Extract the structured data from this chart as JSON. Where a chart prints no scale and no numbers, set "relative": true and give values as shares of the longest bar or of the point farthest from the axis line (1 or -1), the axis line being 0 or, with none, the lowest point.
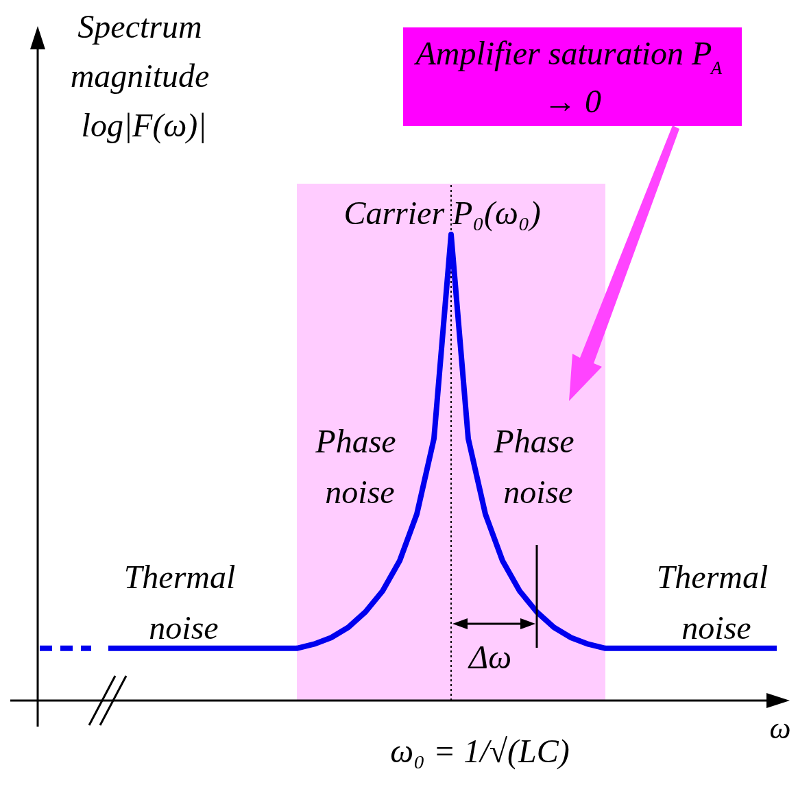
{
  "chart_data": {
    "type": "line",
    "relative": true,
    "marker": "none",
    "xlabel": "ω",
    "ylabel": "Spectrum magnitude log|F(ω)|",
    "categories": [
      null,
      null,
      null,
      null,
      null,
      null,
      null,
      null,
      null,
      null,
      null,
      null,
      null,
      null,
      null,
      null,
      null,
      null,
      null,
      null,
      null,
      null,
      null,
      null,
      null,
      null,
      null,
      null,
      null,
      null,
      null,
      null,
      null,
      null,
      null,
      null,
      null,
      null,
      null,
      null,
      null,
      null,
      null,
      null
    ],
    "series": [
      {
        "color": "#0000ee",
        "line_style": "dashed",
        "values": [
          0.112,
          0.112,
          0.112,
          0.112,
          null,
          null,
          null,
          null,
          null,
          null,
          null,
          null,
          null,
          null,
          null,
          null,
          null,
          null,
          null,
          null,
          null,
          null,
          null,
          null,
          null,
          null,
          null,
          null,
          null,
          null,
          null,
          null,
          null,
          null,
          null,
          null,
          null,
          null,
          null,
          null,
          null,
          null,
          null,
          null
        ]
      },
      {
        "color": "#0000ee",
        "line_style": "solid",
        "values": [
          null,
          null,
          null,
          null,
          0.112,
          0.112,
          0.112,
          0.112,
          0.112,
          0.112,
          0.112,
          0.112,
          0.112,
          0.112,
          0.112,
          0.112,
          0.121,
          0.135,
          0.157,
          0.19,
          0.235,
          0.3,
          0.4,
          0.562,
          1,
          0.562,
          0.4,
          0.3,
          0.235,
          0.19,
          0.157,
          0.135,
          0.121,
          0.112,
          0.112,
          0.112,
          0.112,
          0.112,
          0.112,
          0.112,
          0.112,
          0.112,
          0.112,
          0.112
        ]
      }
    ],
    "annotations": [
      "Carrier P₀(ω₀)",
      "Phase noise",
      "Phase noise",
      "Thermal noise",
      "Thermal noise",
      "Δω",
      "Amplifier saturation P$_{A}$ → 0",
      "ω₀ = 1/√(LC)"
    ]
  }
}
